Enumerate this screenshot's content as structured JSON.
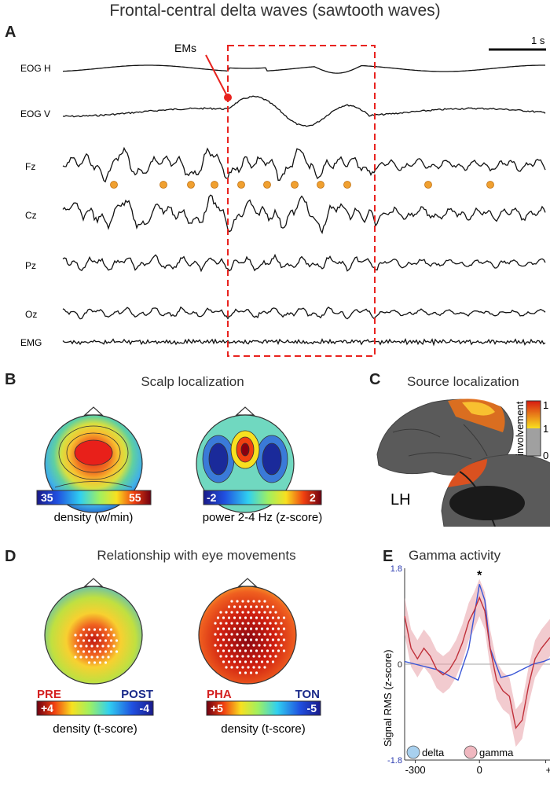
{
  "title": "Frontal-central delta waves (sawtooth waves)",
  "panel_a": {
    "letter": "A",
    "scale_bar_label": "1 s",
    "annotation": "EMs",
    "channels": [
      "EOG H",
      "EOG V",
      "Fz",
      "Cz",
      "Pz",
      "Oz",
      "EMG"
    ],
    "colors": {
      "trace": "#111111",
      "highlight_box": "#e8231f",
      "markers": "#f0a030"
    }
  },
  "panel_b": {
    "letter": "B",
    "title": "Scalp localization",
    "maps": [
      {
        "name": "density-map",
        "scale_min": "35",
        "scale_max": "55",
        "caption": "density (w/min)"
      },
      {
        "name": "power-map",
        "scale_min": "-2",
        "scale_max": "2",
        "caption": "power 2-4 Hz (z-score)"
      }
    ]
  },
  "panel_c": {
    "letter": "C",
    "title": "Source localization",
    "colorbar_label": "involvement",
    "colorbar_ticks": [
      "1",
      "1",
      "0"
    ],
    "hemisphere_label": "LH"
  },
  "panel_d": {
    "letter": "D",
    "title": "Relationship with eye movements",
    "maps": [
      {
        "name": "pre-post-map",
        "left_label": "PRE",
        "right_label": "POST",
        "scale_min": "+4",
        "scale_max": "-4",
        "caption": "density (t-score)"
      },
      {
        "name": "pha-ton-map",
        "left_label": "PHA",
        "right_label": "TON",
        "scale_min": "+5",
        "scale_max": "-5",
        "caption": "density (t-score)"
      }
    ],
    "colors": {
      "left_label": "#d42020",
      "right_label": "#1a2a8a"
    }
  },
  "chart_data": [
    {
      "type": "line",
      "panel": "E",
      "title": "Gamma activity",
      "xlabel": "",
      "ylabel": "Signal RMS (z-score)",
      "xlim": [
        -350,
        330
      ],
      "ylim": [
        -1.8,
        1.8
      ],
      "x_ticks": [
        "-300",
        "0",
        "+"
      ],
      "y_ticks": [
        "1.8",
        "0",
        "-1.8"
      ],
      "annotation": "*",
      "series": [
        {
          "name": "delta",
          "color": "#3a56d6",
          "x": [
            -350,
            -300,
            -250,
            -200,
            -150,
            -100,
            -50,
            0,
            25,
            50,
            100,
            150,
            200,
            250,
            300,
            330
          ],
          "y": [
            0.05,
            0.0,
            -0.05,
            -0.1,
            -0.2,
            -0.3,
            0.3,
            1.5,
            1.2,
            0.3,
            -0.25,
            -0.2,
            -0.1,
            0.0,
            0.05,
            0.1
          ]
        },
        {
          "name": "gamma",
          "color": "#c0303a",
          "x": [
            -350,
            -320,
            -290,
            -260,
            -230,
            -200,
            -170,
            -140,
            -110,
            -80,
            -50,
            -25,
            0,
            25,
            50,
            80,
            110,
            140,
            170,
            200,
            230,
            260,
            290,
            330
          ],
          "y": [
            0.9,
            0.3,
            0.1,
            0.3,
            0.15,
            -0.1,
            -0.2,
            -0.1,
            0.1,
            0.4,
            0.8,
            1.0,
            1.25,
            1.0,
            0.3,
            -0.3,
            -0.5,
            -0.6,
            -1.2,
            -1.05,
            -0.4,
            0.1,
            0.3,
            0.5
          ]
        }
      ],
      "legend_placement": "bottom"
    }
  ]
}
